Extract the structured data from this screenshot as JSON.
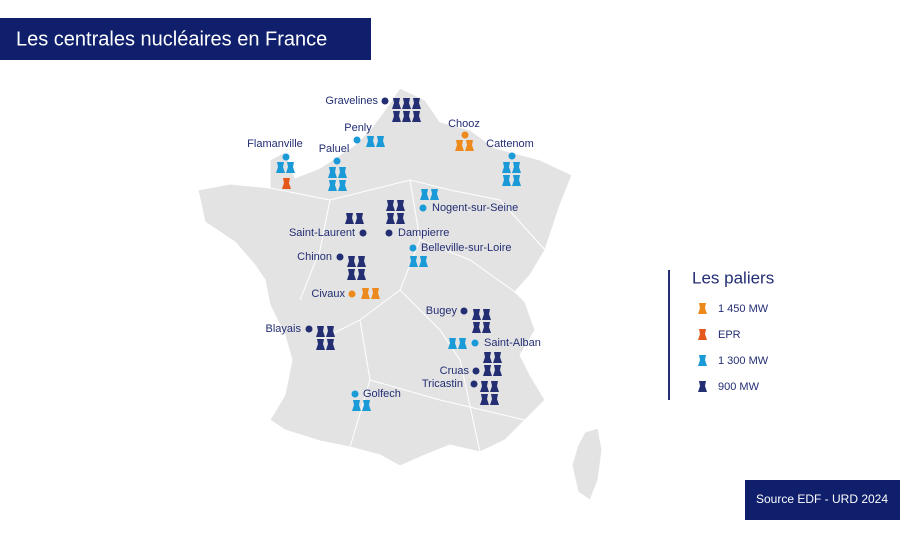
{
  "title": "Les centrales nucléaires en France",
  "plants": [
    {
      "name": "Gravelines",
      "units": [
        {
          "count": 6,
          "color": "#232e73"
        }
      ]
    },
    {
      "name": "Penly",
      "units": [
        {
          "count": 2,
          "color": "#1b9ad8"
        }
      ]
    },
    {
      "name": "Flamanville",
      "units": [
        {
          "count": 2,
          "color": "#1b9ad8"
        },
        {
          "count": 1,
          "color": "#e4581c"
        }
      ]
    },
    {
      "name": "Paluel",
      "units": [
        {
          "count": 4,
          "color": "#1b9ad8"
        }
      ]
    },
    {
      "name": "Chooz",
      "units": [
        {
          "count": 2,
          "color": "#ec8a1e"
        }
      ]
    },
    {
      "name": "Cattenom",
      "units": [
        {
          "count": 4,
          "color": "#1b9ad8"
        }
      ]
    },
    {
      "name": "Nogent-sur-Seine",
      "units": [
        {
          "count": 2,
          "color": "#1b9ad8"
        }
      ]
    },
    {
      "name": "Dampierre",
      "units": [
        {
          "count": 4,
          "color": "#232e73"
        }
      ]
    },
    {
      "name": "Saint-Laurent",
      "units": [
        {
          "count": 2,
          "color": "#232e73"
        }
      ]
    },
    {
      "name": "Belleville-sur-Loire",
      "units": [
        {
          "count": 2,
          "color": "#1b9ad8"
        }
      ]
    },
    {
      "name": "Chinon",
      "units": [
        {
          "count": 4,
          "color": "#232e73"
        }
      ]
    },
    {
      "name": "Civaux",
      "units": [
        {
          "count": 2,
          "color": "#ec8a1e"
        }
      ]
    },
    {
      "name": "Bugey",
      "units": [
        {
          "count": 4,
          "color": "#232e73"
        }
      ]
    },
    {
      "name": "Saint-Alban",
      "units": [
        {
          "count": 2,
          "color": "#1b9ad8"
        }
      ]
    },
    {
      "name": "Cruas",
      "units": [
        {
          "count": 4,
          "color": "#232e73"
        }
      ]
    },
    {
      "name": "Tricastin",
      "units": [
        {
          "count": 4,
          "color": "#232e73"
        }
      ]
    },
    {
      "name": "Blayais",
      "units": [
        {
          "count": 4,
          "color": "#232e73"
        }
      ]
    },
    {
      "name": "Golfech",
      "units": [
        {
          "count": 2,
          "color": "#1b9ad8"
        }
      ]
    }
  ],
  "legend": {
    "title": "Les paliers",
    "items": [
      {
        "label": "1 450 MW",
        "color": "#ec8a1e"
      },
      {
        "label": "EPR",
        "color": "#e4581c"
      },
      {
        "label": "1 300 MW",
        "color": "#1b9ad8"
      },
      {
        "label": "900 MW",
        "color": "#232e73"
      }
    ]
  },
  "source": "Source EDF - URD 2024"
}
